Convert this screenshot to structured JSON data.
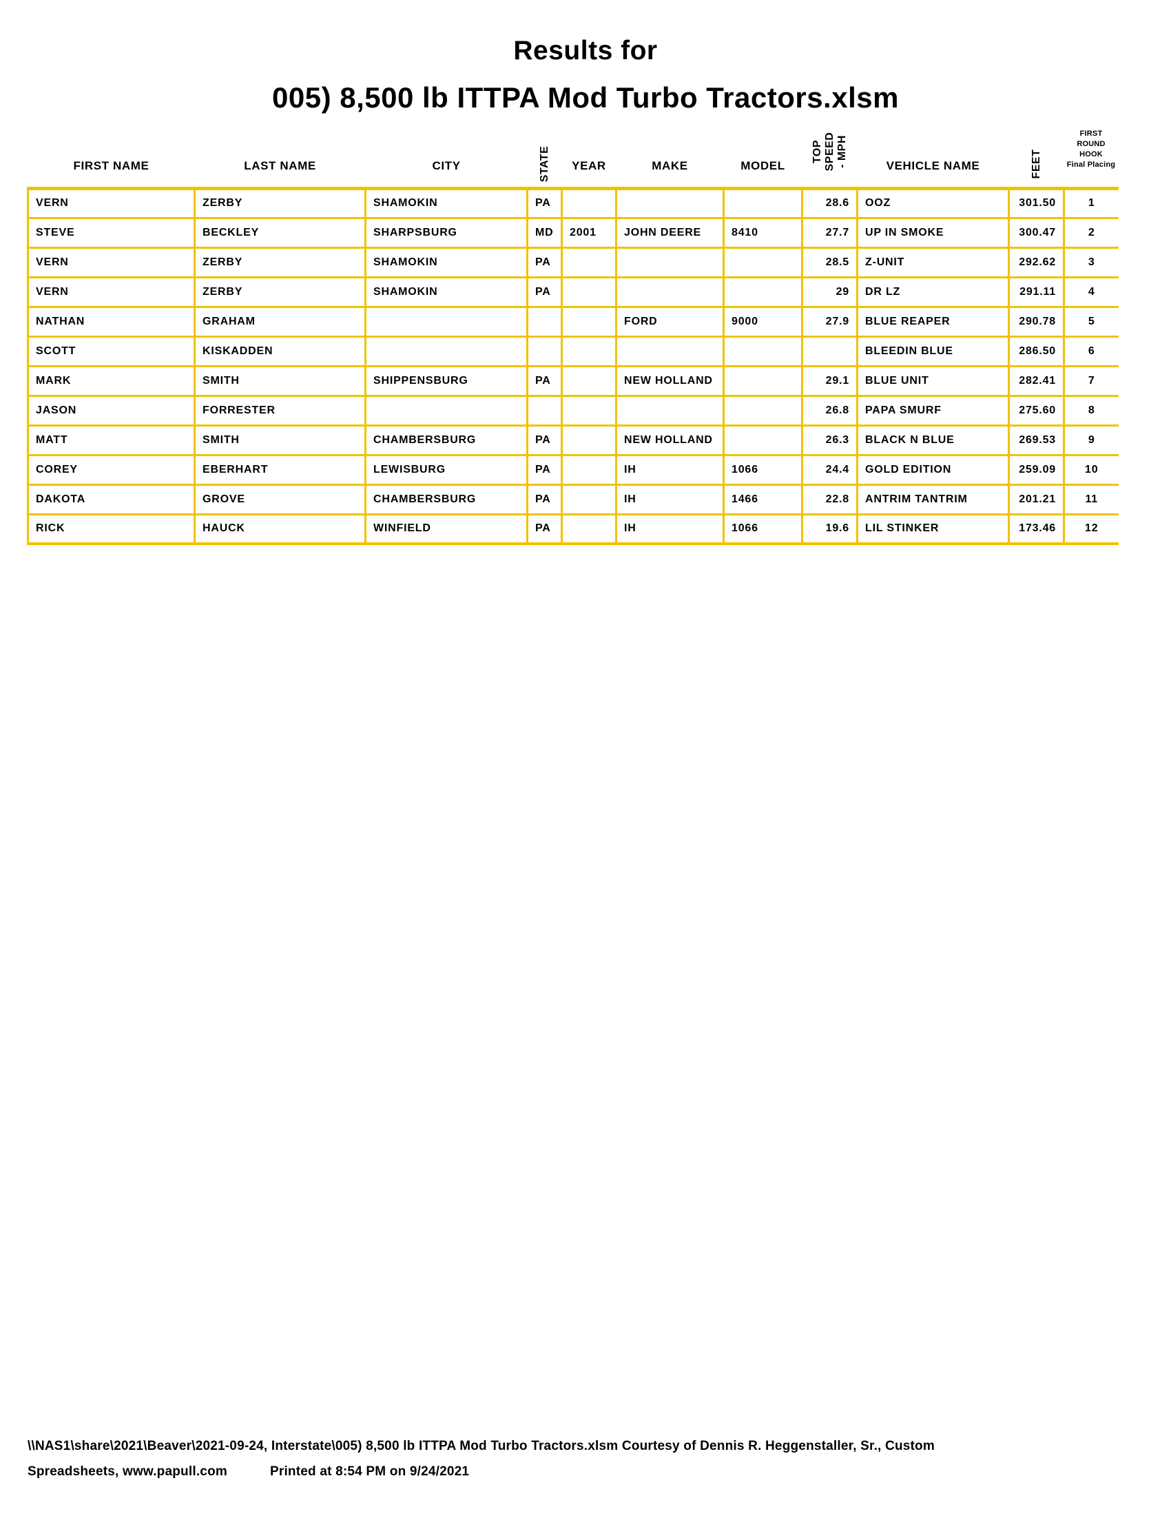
{
  "colors": {
    "grid_gold": "#F2C100",
    "text": "#000000",
    "background": "#FFFFFF"
  },
  "title": {
    "line1": "Results for",
    "line2": "005) 8,500 lb ITTPA Mod Turbo Tractors.xlsm"
  },
  "table": {
    "columns": [
      {
        "key": "first_name",
        "label": "FIRST NAME"
      },
      {
        "key": "last_name",
        "label": "LAST NAME"
      },
      {
        "key": "city",
        "label": "CITY"
      },
      {
        "key": "state",
        "label": "STATE"
      },
      {
        "key": "year",
        "label": "YEAR"
      },
      {
        "key": "make",
        "label": "MAKE"
      },
      {
        "key": "model",
        "label": "MODEL"
      },
      {
        "key": "top_speed",
        "label": "TOP\nSPEED\n- MPH"
      },
      {
        "key": "vehicle_name",
        "label": "VEHICLE NAME"
      },
      {
        "key": "feet",
        "label": "FEET"
      },
      {
        "key": "placing",
        "label": "FIRST ROUND\nHOOK\nFinal Placing"
      }
    ],
    "rows": [
      {
        "first_name": "VERN",
        "last_name": "ZERBY",
        "city": "SHAMOKIN",
        "state": "PA",
        "year": "",
        "make": "",
        "model": "",
        "top_speed": "28.6",
        "vehicle_name": "OOZ",
        "feet": "301.50",
        "placing": "1"
      },
      {
        "first_name": "STEVE",
        "last_name": "BECKLEY",
        "city": "SHARPSBURG",
        "state": "MD",
        "year": "2001",
        "make": "JOHN DEERE",
        "model": "8410",
        "top_speed": "27.7",
        "vehicle_name": "UP IN SMOKE",
        "feet": "300.47",
        "placing": "2"
      },
      {
        "first_name": "VERN",
        "last_name": "ZERBY",
        "city": "SHAMOKIN",
        "state": "PA",
        "year": "",
        "make": "",
        "model": "",
        "top_speed": "28.5",
        "vehicle_name": "Z-UNIT",
        "feet": "292.62",
        "placing": "3"
      },
      {
        "first_name": "VERN",
        "last_name": "ZERBY",
        "city": "SHAMOKIN",
        "state": "PA",
        "year": "",
        "make": "",
        "model": "",
        "top_speed": "29",
        "vehicle_name": "DR LZ",
        "feet": "291.11",
        "placing": "4"
      },
      {
        "first_name": "NATHAN",
        "last_name": "GRAHAM",
        "city": "",
        "state": "",
        "year": "",
        "make": "FORD",
        "model": "9000",
        "top_speed": "27.9",
        "vehicle_name": "BLUE REAPER",
        "feet": "290.78",
        "placing": "5"
      },
      {
        "first_name": "SCOTT",
        "last_name": "KISKADDEN",
        "city": "",
        "state": "",
        "year": "",
        "make": "",
        "model": "",
        "top_speed": "",
        "vehicle_name": "BLEEDIN BLUE",
        "feet": "286.50",
        "placing": "6"
      },
      {
        "first_name": "MARK",
        "last_name": "SMITH",
        "city": "SHIPPENSBURG",
        "state": "PA",
        "year": "",
        "make": "NEW HOLLAND",
        "model": "",
        "top_speed": "29.1",
        "vehicle_name": "BLUE UNIT",
        "feet": "282.41",
        "placing": "7"
      },
      {
        "first_name": "JASON",
        "last_name": "FORRESTER",
        "city": "",
        "state": "",
        "year": "",
        "make": "",
        "model": "",
        "top_speed": "26.8",
        "vehicle_name": "PAPA SMURF",
        "feet": "275.60",
        "placing": "8"
      },
      {
        "first_name": "MATT",
        "last_name": "SMITH",
        "city": "CHAMBERSBURG",
        "state": "PA",
        "year": "",
        "make": "NEW HOLLAND",
        "model": "",
        "top_speed": "26.3",
        "vehicle_name": "BLACK N BLUE",
        "feet": "269.53",
        "placing": "9"
      },
      {
        "first_name": "COREY",
        "last_name": "EBERHART",
        "city": "LEWISBURG",
        "state": "PA",
        "year": "",
        "make": "IH",
        "model": "1066",
        "top_speed": "24.4",
        "vehicle_name": "GOLD EDITION",
        "feet": "259.09",
        "placing": "10"
      },
      {
        "first_name": "DAKOTA",
        "last_name": "GROVE",
        "city": "CHAMBERSBURG",
        "state": "PA",
        "year": "",
        "make": "IH",
        "model": "1466",
        "top_speed": "22.8",
        "vehicle_name": "ANTRIM TANTRIM",
        "feet": "201.21",
        "placing": "11"
      },
      {
        "first_name": "RICK",
        "last_name": "HAUCK",
        "city": "WINFIELD",
        "state": "PA",
        "year": "",
        "make": "IH",
        "model": "1066",
        "top_speed": "19.6",
        "vehicle_name": "LIL STINKER",
        "feet": "173.46",
        "placing": "12"
      }
    ]
  },
  "footer": {
    "path_line": "\\\\NAS1\\share\\2021\\Beaver\\2021-09-24, Interstate\\005) 8,500 lb ITTPA Mod Turbo Tractors.xlsm  Courtesy of Dennis R. Heggenstaller, Sr., Custom",
    "line2_left": "Spreadsheets, www.papull.com",
    "printed": "Printed at 8:54 PM on 9/24/2021"
  }
}
